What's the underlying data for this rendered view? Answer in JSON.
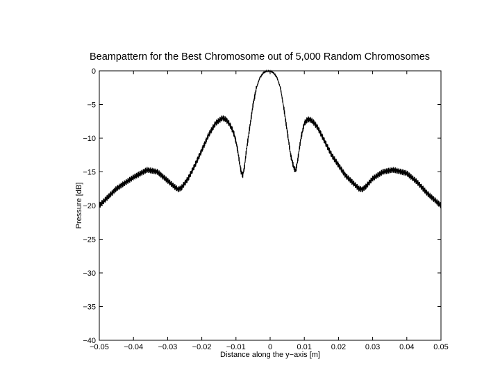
{
  "chart_data": {
    "type": "line",
    "title": "Beampattern for the Best Chromosome out of 5,000 Random Chromosomes",
    "xlabel": "Distance along the y−axis [m]",
    "ylabel": "Pressure [dB]",
    "xlim": [
      -0.05,
      0.05
    ],
    "ylim": [
      -40,
      0
    ],
    "xticks": [
      -0.05,
      -0.04,
      -0.03,
      -0.02,
      -0.01,
      0,
      0.01,
      0.02,
      0.03,
      0.04,
      0.05
    ],
    "xtick_labels": [
      "−0.05",
      "−0.04",
      "−0.03",
      "−0.02",
      "−0.01",
      "0",
      "0.01",
      "0.02",
      "0.03",
      "0.04",
      "0.05"
    ],
    "yticks": [
      0,
      -5,
      -10,
      -15,
      -20,
      -25,
      -30,
      -35,
      -40
    ],
    "ytick_labels": [
      "0",
      "−5",
      "−10",
      "−15",
      "−20",
      "−25",
      "−30",
      "−35",
      "−40"
    ],
    "grid": false,
    "legend": false,
    "series": [
      {
        "color": "#000000",
        "x": [
          -0.05,
          -0.045,
          -0.04,
          -0.036,
          -0.033,
          -0.03,
          -0.028,
          -0.027,
          -0.026,
          -0.024,
          -0.022,
          -0.02,
          -0.018,
          -0.016,
          -0.014,
          -0.013,
          -0.012,
          -0.011,
          -0.0105,
          -0.01,
          -0.0095,
          -0.009,
          -0.0085,
          -0.008,
          -0.0075,
          -0.007,
          -0.006,
          -0.005,
          -0.004,
          -0.003,
          -0.002,
          -0.001,
          0,
          0.001,
          0.002,
          0.003,
          0.004,
          0.005,
          0.006,
          0.007,
          0.0075,
          0.008,
          0.009,
          0.01,
          0.011,
          0.012,
          0.013,
          0.014,
          0.016,
          0.018,
          0.02,
          0.022,
          0.024,
          0.026,
          0.027,
          0.028,
          0.03,
          0.033,
          0.036,
          0.04,
          0.043,
          0.046,
          0.05
        ],
        "y": [
          -20,
          -17.5,
          -15.8,
          -14.7,
          -15,
          -16.3,
          -17.2,
          -17.6,
          -17.4,
          -16,
          -14,
          -11.8,
          -9.5,
          -7.8,
          -7,
          -7.2,
          -7.8,
          -8.8,
          -9.5,
          -10.5,
          -11.8,
          -13.5,
          -15,
          -15.5,
          -14.2,
          -12,
          -8.5,
          -5,
          -2.5,
          -1,
          -0.3,
          0,
          0,
          -0.3,
          -1,
          -2.5,
          -5.5,
          -9,
          -12.5,
          -14.5,
          -14.8,
          -13.5,
          -10,
          -7.8,
          -7.2,
          -7.3,
          -7.8,
          -8.5,
          -10.5,
          -12.5,
          -14,
          -15.5,
          -16.5,
          -17.5,
          -17.6,
          -17.2,
          -16,
          -15,
          -14.7,
          -15.2,
          -16.5,
          -18.2,
          -20
        ]
      }
    ]
  }
}
